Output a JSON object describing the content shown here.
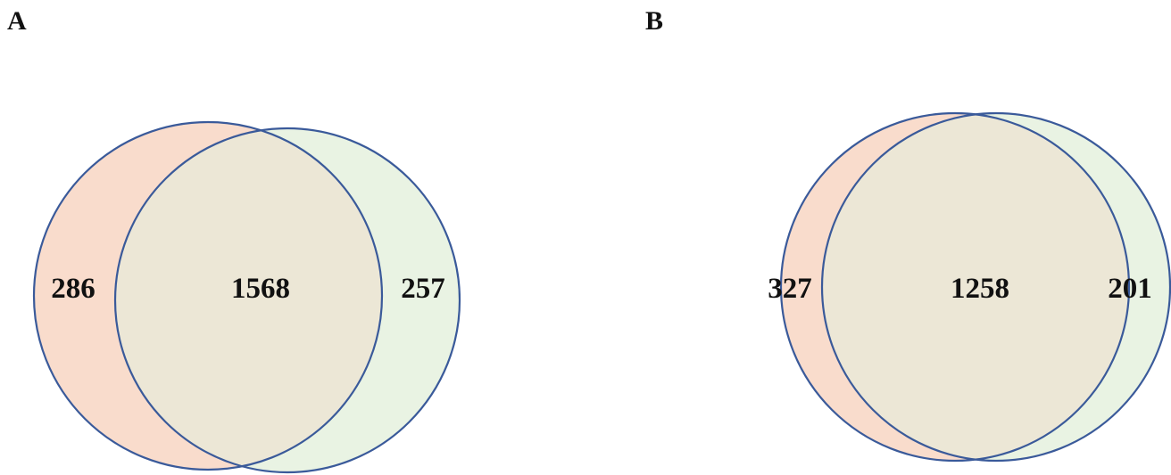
{
  "colors": {
    "left_set": "#f9dccc",
    "right_set": "#e9f3e3",
    "overlap": "#ece7d6",
    "outline": "#3a5a9a"
  },
  "panels": [
    {
      "label": "A",
      "counts": {
        "left_only": "286",
        "intersection": "1568",
        "right_only": "257"
      }
    },
    {
      "label": "B",
      "counts": {
        "left_only": "327",
        "intersection": "1258",
        "right_only": "201"
      }
    }
  ]
}
